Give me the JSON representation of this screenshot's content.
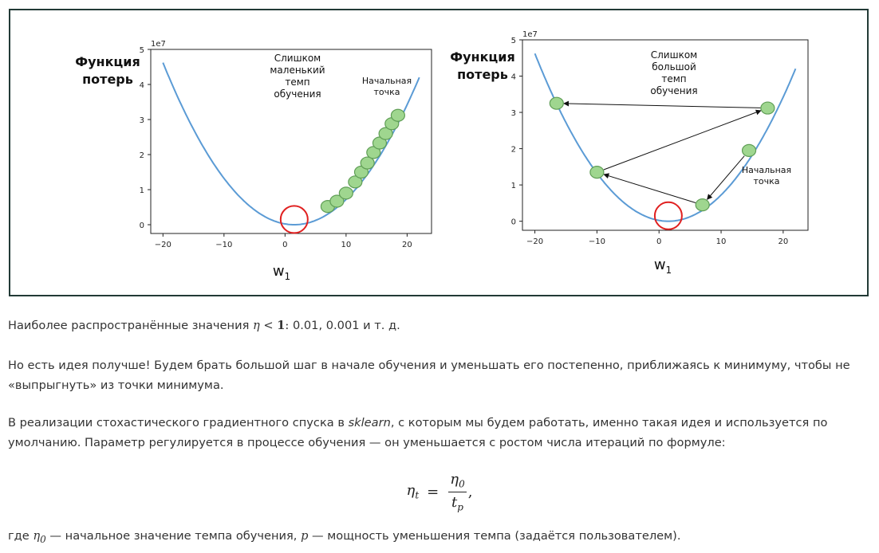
{
  "chart_data": [
    {
      "type": "line",
      "title": "",
      "multiplier_label": "1e7",
      "ylabel": "Функция потерь",
      "xlabel": "w",
      "xlabel_sub": "1",
      "xlim": [
        -22,
        24
      ],
      "ylim": [
        -0.25,
        5
      ],
      "x_ticks": [
        -20,
        -10,
        0,
        10,
        20
      ],
      "x_tick_labels": [
        "−20",
        "−10",
        "0",
        "10",
        "20"
      ],
      "y_ticks": [
        0,
        1,
        2,
        3,
        4,
        5
      ],
      "y_tick_labels": [
        "0",
        "1",
        "2",
        "3",
        "4",
        "5"
      ],
      "series": [
        {
          "kind": "curve",
          "equation": "y = 1e5 * (x - 1.5)^2",
          "x": [
            -20,
            -15,
            -10,
            -5,
            0,
            1.5,
            5,
            10,
            15,
            20,
            22
          ],
          "y": [
            4.62,
            2.72,
            1.32,
            0.42,
            0.02,
            0.0,
            0.12,
            0.72,
            1.82,
            3.42,
            4.2
          ],
          "color": "#5b9bd5"
        },
        {
          "kind": "points",
          "x": [
            7,
            8.5,
            10,
            11.5,
            12.5,
            13.5,
            14.5,
            15.5,
            16.5,
            17.5,
            18.5
          ],
          "y": [
            0.52,
            0.67,
            0.9,
            1.22,
            1.5,
            1.76,
            2.06,
            2.33,
            2.6,
            2.88,
            3.12
          ],
          "color": "#9fd68f"
        }
      ],
      "annotations": [
        {
          "text": "Слишком маленький темп обучения"
        },
        {
          "text": "Начальная точка"
        }
      ],
      "minimum_marker": {
        "x": 1.5,
        "y": 0.15,
        "color": "#e02020"
      }
    },
    {
      "type": "line",
      "title": "",
      "multiplier_label": "1e7",
      "ylabel": "Функция потерь",
      "xlabel": "w",
      "xlabel_sub": "1",
      "xlim": [
        -22,
        24
      ],
      "ylim": [
        -0.25,
        5
      ],
      "x_ticks": [
        -20,
        -10,
        0,
        10,
        20
      ],
      "x_tick_labels": [
        "−20",
        "−10",
        "0",
        "10",
        "20"
      ],
      "y_ticks": [
        0,
        1,
        2,
        3,
        4,
        5
      ],
      "y_tick_labels": [
        "0",
        "1",
        "2",
        "3",
        "4",
        "5"
      ],
      "series": [
        {
          "kind": "curve",
          "equation": "y = 1e5 * (x - 1.5)^2",
          "color": "#5b9bd5"
        },
        {
          "kind": "points",
          "x": [
            -16.5,
            -10,
            7,
            14.5,
            17.5
          ],
          "y": [
            3.25,
            1.35,
            0.45,
            1.95,
            3.12
          ],
          "color": "#9fd68f"
        }
      ],
      "arrows": [
        {
          "from": [
            14.5,
            1.95
          ],
          "to": [
            7,
            0.45
          ]
        },
        {
          "from": [
            7,
            0.45
          ],
          "to": [
            -10,
            1.35
          ]
        },
        {
          "from": [
            -10,
            1.35
          ],
          "to": [
            17.5,
            3.12
          ]
        },
        {
          "from": [
            17.5,
            3.12
          ],
          "to": [
            -16.5,
            3.25
          ]
        }
      ],
      "annotations": [
        {
          "text": "Слишком большой темп обучения"
        },
        {
          "text": "Начальная точка"
        }
      ],
      "minimum_marker": {
        "x": 1.5,
        "y": 0.15,
        "color": "#e02020"
      }
    }
  ],
  "left": {
    "ylabel_line1": "Функция",
    "ylabel_line2": "потерь",
    "multiplier": "1e7",
    "note_lines": [
      "Слишком",
      "маленький",
      "темп",
      "обучения"
    ],
    "start_lines": [
      "Начальная",
      "точка"
    ],
    "xlabel": "w",
    "xlabel_sub": "1"
  },
  "right": {
    "ylabel_line1": "Функция",
    "ylabel_line2": "потерь",
    "multiplier": "1e7",
    "note_lines": [
      "Слишком",
      "большой",
      "темп",
      "обучения"
    ],
    "start_lines": [
      "Начальная",
      "точка"
    ],
    "xlabel": "w",
    "xlabel_sub": "1"
  },
  "text": {
    "p1_before": "Наиболее распространённые значения ",
    "p1_math_eta": "η",
    "p1_math_lt": " < ",
    "p1_math_one": "1",
    "p1_colon": ":",
    "p1_after": "  0.01, 0.001 и т. д.",
    "p2": "Но есть идея получше! Будем брать большой шаг в начале обучения и уменьшать его постепенно, приближаясь к минимуму, чтобы не «выпрыгнуть» из точки минимума.",
    "p3_before": "В реализации стохастического градиентного спуска в ",
    "p3_em": "sklearn",
    "p3_after": ", с которым мы будем работать, именно такая идея и используется по умолчанию. Параметр  регулируется в процессе обучения — он уменьшается с ростом числа итераций по формуле:",
    "formula_lhs": "η",
    "formula_lhs_sub": "t",
    "formula_eq": "=",
    "formula_num": "η",
    "formula_num_sub": "0",
    "formula_den": "t",
    "formula_den_sub": "p",
    "formula_comma": ",",
    "p4_where": "где ",
    "p4_eta": "η",
    "p4_eta_sub": "0",
    "p4_mid": " — начальное значение темпа обучения, ",
    "p4_p": "p",
    "p4_end": " — мощность уменьшения темпа (задаётся пользователем)."
  }
}
